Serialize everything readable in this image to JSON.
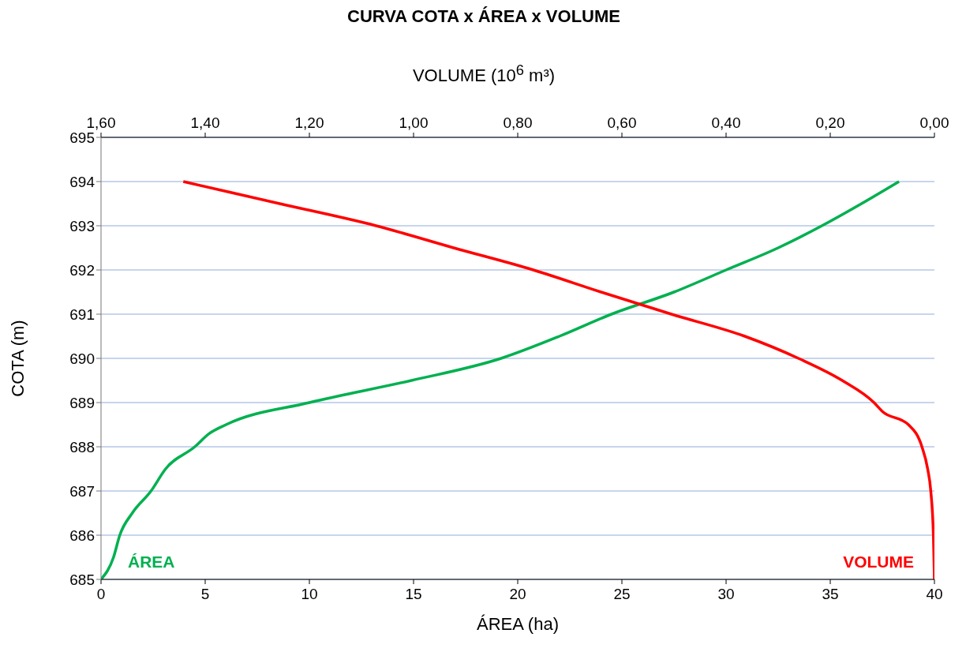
{
  "chart_data": {
    "type": "line",
    "title": "CURVA COTA x ÁREA x VOLUME",
    "xlabel": "ÁREA (ha)",
    "x2label": "VOLUME (10$^{6}$ m³)",
    "ylabel": "COTA (m)",
    "xlim": [
      0,
      40
    ],
    "xticks": [
      0,
      5,
      10,
      15,
      20,
      25,
      30,
      35,
      40
    ],
    "x2lim": [
      1.6,
      0
    ],
    "x2ticks": [
      {
        "value": 1.6,
        "label": "1,60"
      },
      {
        "value": 1.4,
        "label": "1,40"
      },
      {
        "value": 1.2,
        "label": "1,20"
      },
      {
        "value": 1.0,
        "label": "1,00"
      },
      {
        "value": 0.8,
        "label": "0,80"
      },
      {
        "value": 0.6,
        "label": "0,60"
      },
      {
        "value": 0.4,
        "label": "0,40"
      },
      {
        "value": 0.2,
        "label": "0,20"
      },
      {
        "value": 0,
        "label": "0,00"
      }
    ],
    "ylim": [
      685,
      695
    ],
    "yticks": [
      685,
      686,
      687,
      688,
      689,
      690,
      691,
      692,
      693,
      694,
      695
    ],
    "grid": "y",
    "marker": "none",
    "line_style": "solid",
    "series": [
      {
        "name": "ÁREA",
        "color": "#00b050",
        "x": [
          0,
          0.6,
          0.9,
          1.5,
          2.4,
          3.1,
          4.5,
          5.2,
          6.0,
          10.0,
          14.9,
          19.2,
          22.0,
          24.5,
          27.5,
          30.0,
          32.5,
          34.6,
          36.5,
          38.3
        ],
        "values": [
          685,
          685.5,
          686,
          686.5,
          687,
          687.5,
          688,
          688.3,
          688.5,
          689,
          689.5,
          690,
          690.5,
          691,
          691.5,
          692,
          692.5,
          693,
          693.5,
          694
        ]
      },
      {
        "name": "VOLUME",
        "color": "#ff0000",
        "axis": "x2",
        "x": [
          0,
          0.002,
          0.007,
          0.013,
          0.024,
          0.05,
          0.1,
          0.116,
          0.177,
          0.261,
          0.364,
          0.505,
          0.64,
          0.77,
          0.923,
          1.072,
          1.257,
          1.442
        ],
        "values": [
          685,
          686,
          687,
          687.5,
          688,
          688.5,
          688.8,
          689,
          689.5,
          690,
          690.5,
          691,
          691.5,
          692,
          692.5,
          693,
          693.5,
          694
        ]
      }
    ]
  }
}
